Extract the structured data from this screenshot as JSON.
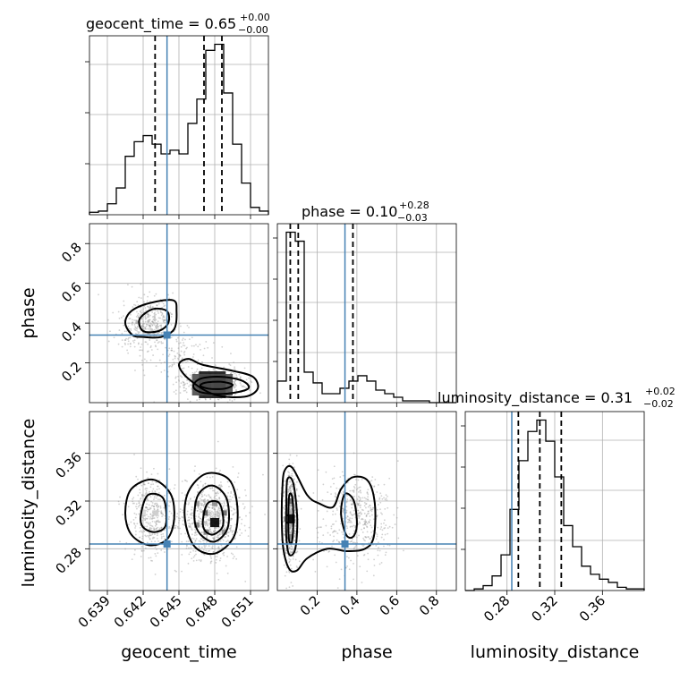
{
  "chart_data": {
    "type": "scatter",
    "variant": "corner-plot",
    "parameters": [
      "geocent_time",
      "phase",
      "luminosity_distance"
    ],
    "truth": {
      "geocent_time": 0.644,
      "phase": 0.34,
      "luminosity_distance": 0.284
    },
    "titles": [
      {
        "param": "geocent_time",
        "label": "geocent_time = 0.65",
        "upper": "+0.00",
        "lower": "−0.00"
      },
      {
        "param": "phase",
        "label": "phase = 0.10",
        "upper": "+0.28",
        "lower": "−0.03"
      },
      {
        "param": "luminosity_distance",
        "label": "luminosity_distance = 0.31",
        "upper": "+0.02",
        "lower": "−0.02"
      }
    ],
    "ranges": {
      "geocent_time": [
        0.6375,
        0.6525
      ],
      "phase": [
        0.0,
        0.9
      ],
      "luminosity_distance": [
        0.245,
        0.395
      ]
    },
    "ticks": {
      "geocent_time": [
        "0.639",
        "0.642",
        "0.645",
        "0.648",
        "0.651"
      ],
      "phase": [
        "0.2",
        "0.4",
        "0.6",
        "0.8"
      ],
      "luminosity_distance": [
        "0.28",
        "0.32",
        "0.36"
      ]
    },
    "diagonal": [
      {
        "param": "geocent_time",
        "edges": [
          0.6375,
          0.63825,
          0.639,
          0.63975,
          0.6405,
          0.64125,
          0.642,
          0.64275,
          0.6435,
          0.64425,
          0.645,
          0.64575,
          0.6465,
          0.64725,
          0.648,
          0.64875,
          0.6495,
          0.65025,
          0.651,
          0.65175,
          0.6525
        ],
        "counts": [
          2,
          3,
          9,
          22,
          48,
          60,
          65,
          58,
          50,
          53,
          50,
          75,
          95,
          135,
          140,
          100,
          58,
          26,
          6,
          3
        ],
        "quantiles": [
          0.643,
          0.6471,
          0.6486
        ]
      },
      {
        "param": "phase",
        "edges": [
          0.0,
          0.045,
          0.09,
          0.135,
          0.18,
          0.225,
          0.27,
          0.315,
          0.36,
          0.405,
          0.45,
          0.495,
          0.54,
          0.585,
          0.63,
          0.675,
          0.72,
          0.765,
          0.81,
          0.855,
          0.9
        ],
        "counts": [
          12,
          95,
          90,
          17,
          11,
          5,
          5,
          8,
          12,
          15,
          12,
          7,
          5,
          3,
          1,
          1,
          1,
          0,
          0,
          0
        ],
        "quantiles": [
          0.065,
          0.105,
          0.38
        ]
      },
      {
        "param": "luminosity_distance",
        "edges": [
          0.245,
          0.2525,
          0.26,
          0.2675,
          0.275,
          0.2825,
          0.29,
          0.2975,
          0.305,
          0.3125,
          0.32,
          0.3275,
          0.335,
          0.3425,
          0.35,
          0.3575,
          0.365,
          0.3725,
          0.38,
          0.3875,
          0.395
        ],
        "counts": [
          0,
          1,
          3,
          9,
          22,
          50,
          80,
          98,
          105,
          92,
          70,
          40,
          27,
          15,
          10,
          7,
          5,
          2,
          1,
          1
        ],
        "quantiles": [
          0.2895,
          0.3075,
          0.3255
        ]
      }
    ],
    "contour_levels": [
      "0.5",
      "1.0",
      "1.5",
      "2.0 sigma"
    ],
    "grid": true
  }
}
